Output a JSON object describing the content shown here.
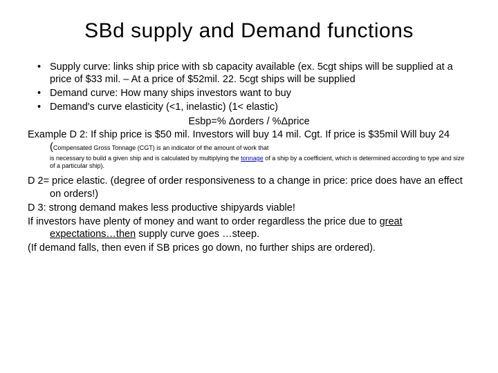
{
  "title": "SBd supply and Demand functions",
  "bullets": {
    "b1": "Supply curve: links ship price with sb capacity available (ex. 5cgt ships will be supplied at a price of $33 mil. – At a price of $52mil. 22. 5cgt ships will be supplied",
    "b2": "Demand curve: How many ships investors want to buy",
    "b3": "Demand's curve elasticity (<1, inelastic) (1< elastic)"
  },
  "formula": "Esbp=% Δorders / %Δprice",
  "example_lead": "Example D 2: If ship price is $50 mil. Investors will buy 14 mil. Cgt. If price is $35mil Will buy 24 (",
  "note_part1": "Compensated Gross Tonnage (CGT) is an indicator of the amount of work that",
  "note_part2": "is necessary to build a given ship and is calculated by multiplying the ",
  "note_link": "tonnage",
  "note_part3": " of a ship by a coefficient, which is determined according to type and size of a particular ship).",
  "d2": "D 2= price elastic. (degree of order responsiveness to a change in price: price does have an effect on orders!)",
  "d3": "D 3: strong demand makes less productive shipyards viable!",
  "inv_a": "If investors have plenty of money and want to order regardless the price due to ",
  "inv_u": "great expectations…then",
  "inv_b": " supply curve goes …steep.",
  "fall": "(If demand falls, then even if SB prices go down, no further ships are ordered)."
}
